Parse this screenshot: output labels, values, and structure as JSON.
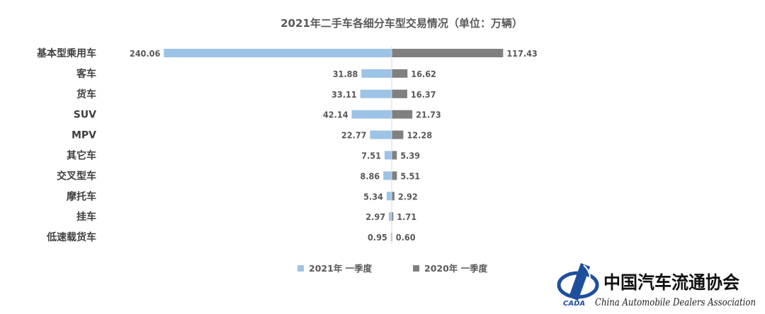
{
  "chart_data": {
    "type": "bar",
    "orientation": "horizontal-diverging",
    "title": "2021年二手车各细分车型交易情况（单位：万辆）",
    "categories": [
      "基本型乘用车",
      "客车",
      "货车",
      "SUV",
      "MPV",
      "其它车",
      "交叉型车",
      "摩托车",
      "挂车",
      "低速载货车"
    ],
    "series": [
      {
        "name": "2021年 一季度",
        "color": "#9dc3e6",
        "direction": "left",
        "values": [
          240.06,
          31.88,
          33.11,
          42.14,
          22.77,
          7.51,
          8.86,
          5.34,
          2.97,
          0.95
        ],
        "labels": [
          "240.06",
          "31.88",
          "33.11",
          "42.14",
          "22.77",
          "7.51",
          "8.86",
          "5.34",
          "2.97",
          "0.95"
        ]
      },
      {
        "name": "2020年 一季度",
        "color": "#808080",
        "direction": "right",
        "values": [
          117.43,
          16.62,
          16.37,
          21.73,
          12.28,
          5.39,
          5.51,
          2.92,
          1.71,
          0.6
        ],
        "labels": [
          "117.43",
          "16.62",
          "16.37",
          "21.73",
          "12.28",
          "5.39",
          "5.51",
          "2.92",
          "1.71",
          "0.60"
        ]
      }
    ],
    "legend_position": "bottom",
    "grid": false
  },
  "logo": {
    "name_cn": "中国汽车流通协会",
    "name_en": "China Automobile Dealers Association",
    "abbr": "CADA",
    "color": "#1f4e9c"
  }
}
